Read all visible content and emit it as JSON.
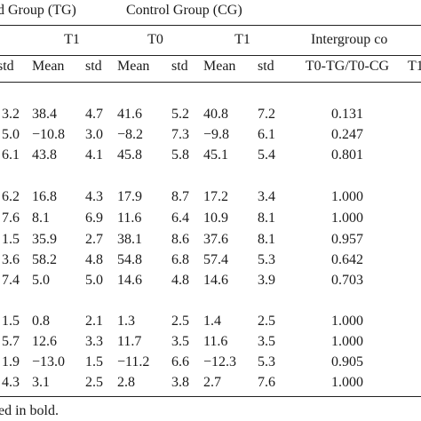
{
  "header": {
    "group_row": [
      "d Group (TG)",
      "Control Group (CG)"
    ],
    "time_row": [
      "T1",
      "T0",
      "T1",
      "Intergroup co"
    ],
    "stat_row": [
      "std",
      "Mean",
      "std",
      "Mean",
      "std",
      "Mean",
      "std",
      "T0-TG/T0-CG",
      "T1"
    ]
  },
  "table": {
    "rows": [
      [
        "3.2",
        "38.4",
        "4.7",
        "41.6",
        "5.2",
        "40.8",
        "7.2",
        "0.131"
      ],
      [
        "5.0",
        "−10.8",
        "3.0",
        "−8.2",
        "7.3",
        "−9.8",
        "6.1",
        "0.247"
      ],
      [
        "6.1",
        "43.8",
        "4.1",
        "45.8",
        "5.8",
        "45.1",
        "5.4",
        "0.801"
      ],
      [
        "6.2",
        "16.8",
        "4.3",
        "17.9",
        "8.7",
        "17.2",
        "3.4",
        "1.000"
      ],
      [
        "7.6",
        "8.1",
        "6.9",
        "11.6",
        "6.4",
        "10.9",
        "8.1",
        "1.000"
      ],
      [
        "1.5",
        "35.9",
        "2.7",
        "38.1",
        "8.6",
        "37.6",
        "8.1",
        "0.957"
      ],
      [
        "3.6",
        "58.2",
        "4.8",
        "54.8",
        "6.8",
        "57.4",
        "5.3",
        "0.642"
      ],
      [
        "7.4",
        "5.0",
        "5.0",
        "14.6",
        "4.8",
        "14.6",
        "3.9",
        "0.703"
      ],
      [
        "1.5",
        "0.8",
        "2.1",
        "1.3",
        "2.5",
        "1.4",
        "2.5",
        "1.000"
      ],
      [
        "5.7",
        "12.6",
        "3.3",
        "11.7",
        "3.5",
        "11.6",
        "3.5",
        "1.000"
      ],
      [
        "1.9",
        "−13.0",
        "1.5",
        "−11.2",
        "6.6",
        "−12.3",
        "5.3",
        "0.905"
      ],
      [
        "4.3",
        "3.1",
        "2.5",
        "2.8",
        "3.8",
        "2.7",
        "7.6",
        "1.000"
      ]
    ]
  },
  "footer": "ed in bold."
}
